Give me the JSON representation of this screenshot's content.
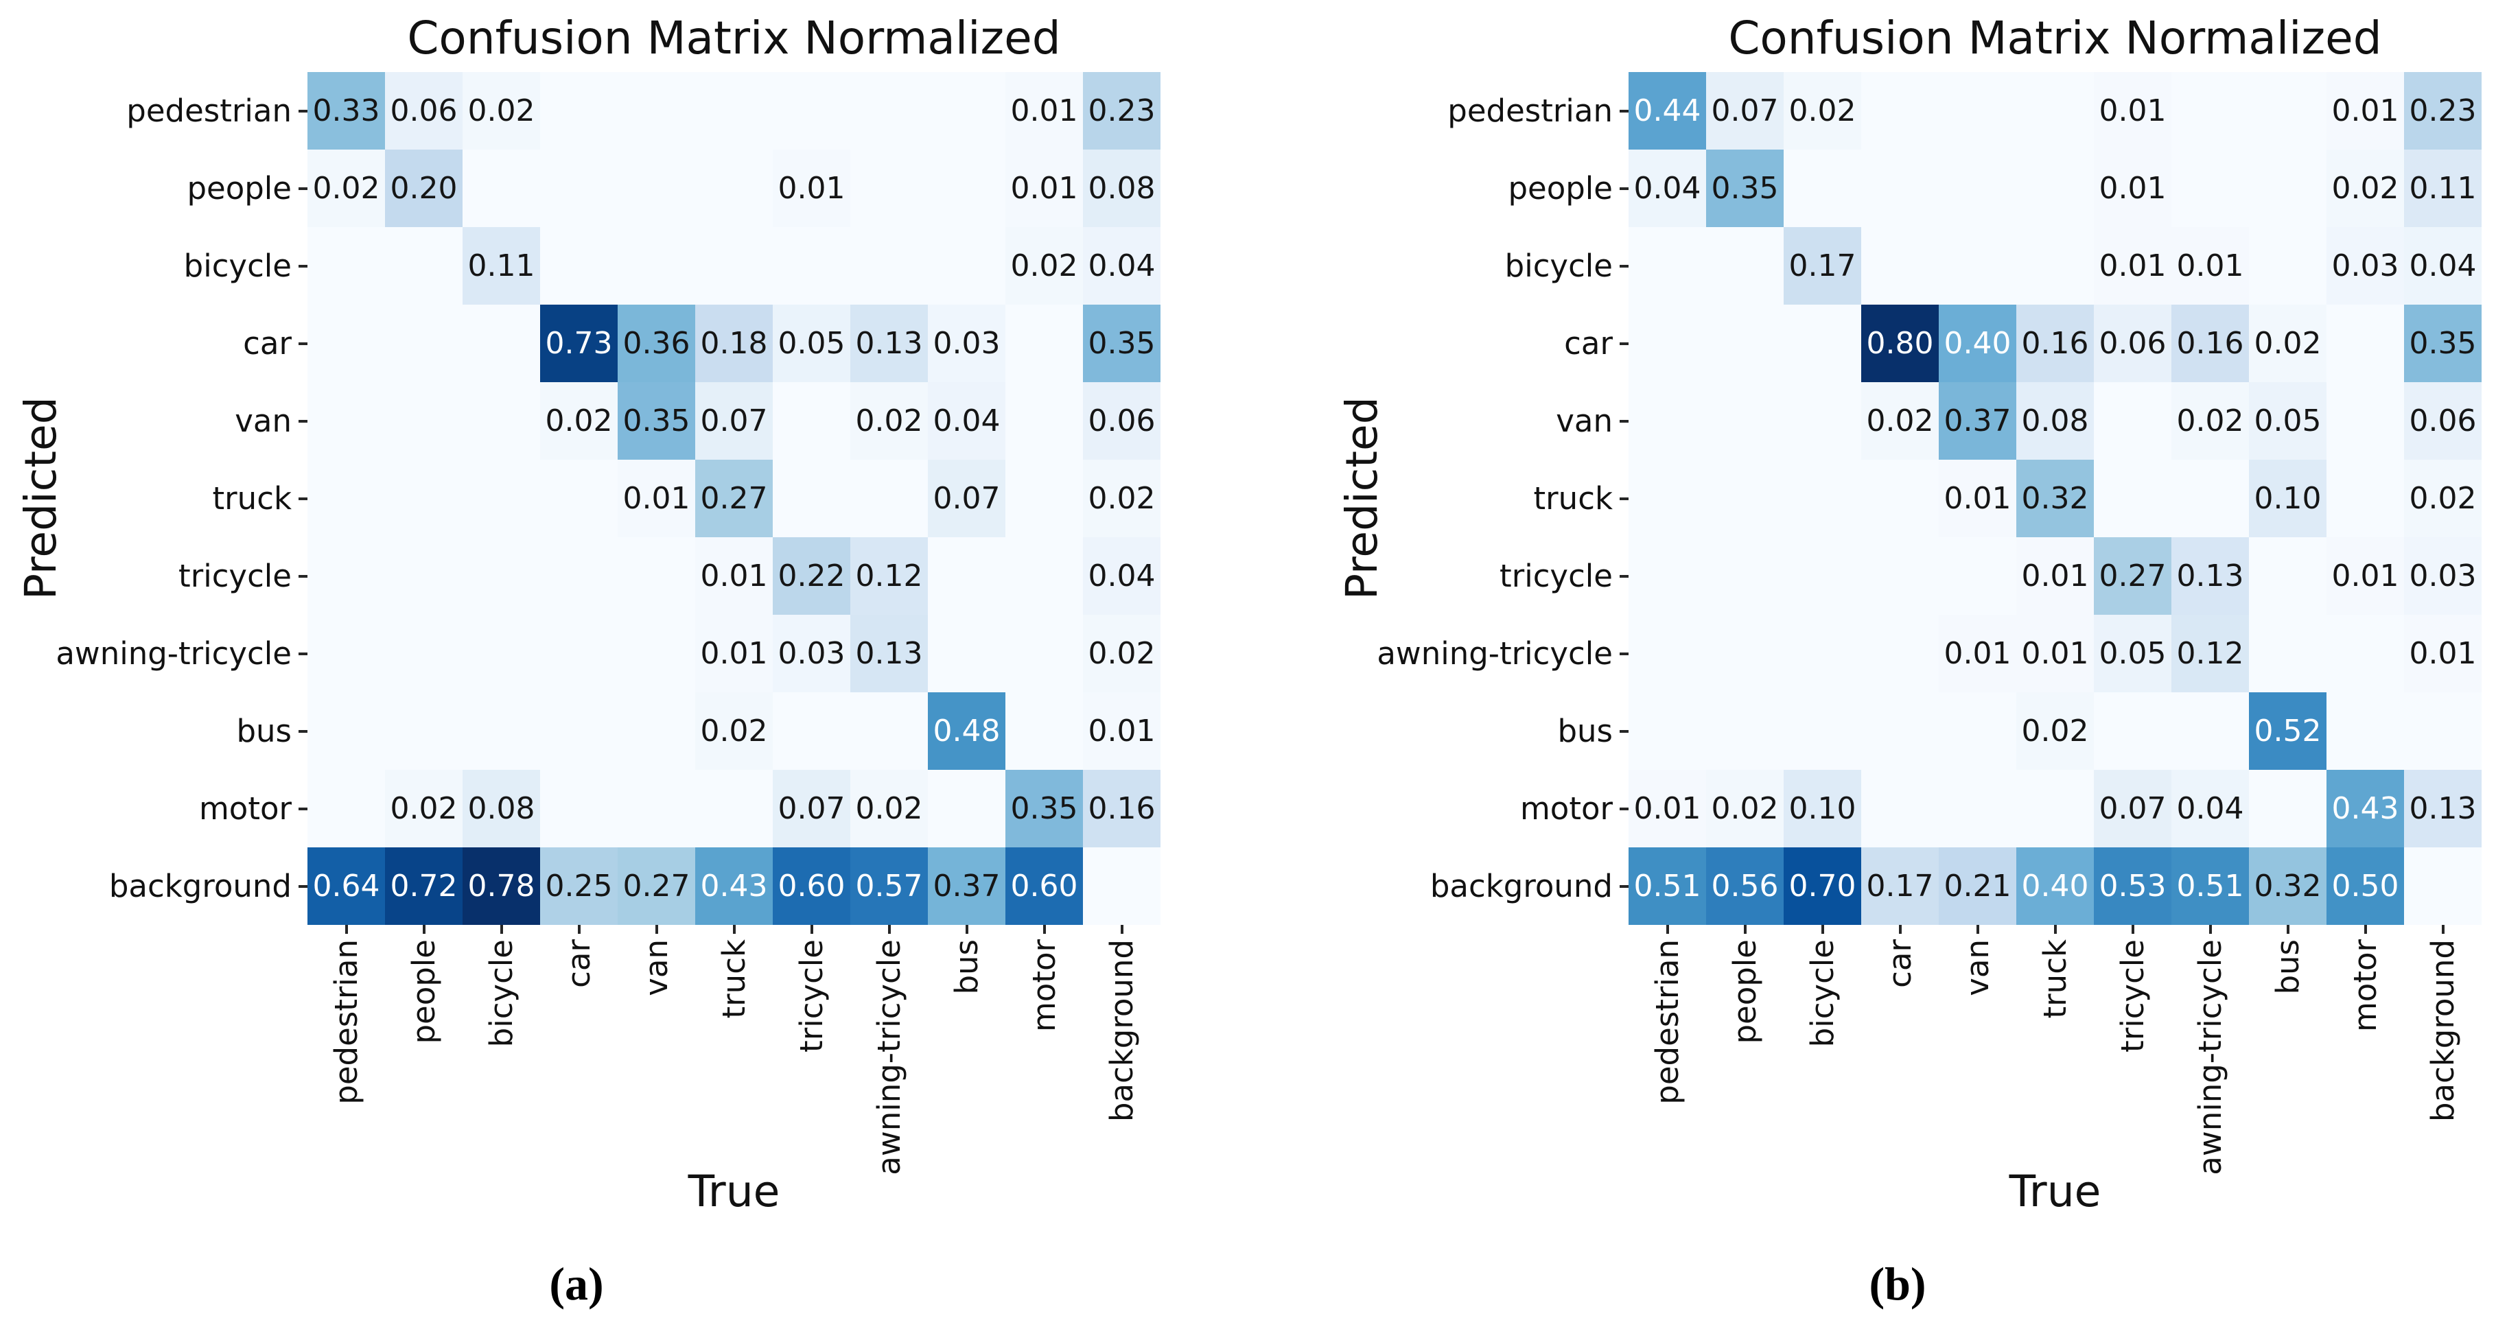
{
  "colors": {
    "background": "#ffffff",
    "colormap_low": "#f7fbff",
    "colormap_high": "#08306b",
    "annotation_dark": "#151515",
    "annotation_light": "#ffffff",
    "tick_color": "#262626"
  },
  "chart_data": [
    {
      "type": "heatmap",
      "panel_label": "(a)",
      "title": "Confusion Matrix Normalized",
      "xlabel": "True",
      "ylabel": "Predicted",
      "colormap": "Blues",
      "grid": false,
      "legend": "none",
      "vmin": 0,
      "vmax": 0.78,
      "x_categories": [
        "pedestrian",
        "people",
        "bicycle",
        "car",
        "van",
        "truck",
        "tricycle",
        "awning-tricycle",
        "bus",
        "motor",
        "background"
      ],
      "y_categories": [
        "pedestrian",
        "people",
        "bicycle",
        "car",
        "van",
        "truck",
        "tricycle",
        "awning-tricycle",
        "bus",
        "motor",
        "background"
      ],
      "values": [
        [
          0.33,
          0.06,
          0.02,
          0,
          0,
          0,
          0,
          0,
          0,
          0.01,
          0.23
        ],
        [
          0.02,
          0.2,
          0,
          0,
          0,
          0,
          0.01,
          0,
          0,
          0.01,
          0.08
        ],
        [
          0,
          0,
          0.11,
          0,
          0,
          0,
          0,
          0,
          0,
          0.02,
          0.04
        ],
        [
          0,
          0,
          0,
          0.73,
          0.36,
          0.18,
          0.05,
          0.13,
          0.03,
          0,
          0.35
        ],
        [
          0,
          0,
          0,
          0.02,
          0.35,
          0.07,
          0,
          0.02,
          0.04,
          0,
          0.06
        ],
        [
          0,
          0,
          0,
          0,
          0.01,
          0.27,
          0,
          0,
          0.07,
          0,
          0.02
        ],
        [
          0,
          0,
          0,
          0,
          0,
          0.01,
          0.22,
          0.12,
          0,
          0,
          0.04
        ],
        [
          0,
          0,
          0,
          0,
          0,
          0.01,
          0.03,
          0.13,
          0,
          0,
          0.02
        ],
        [
          0,
          0,
          0,
          0,
          0,
          0.02,
          0,
          0,
          0.48,
          0,
          0.01
        ],
        [
          0,
          0.02,
          0.08,
          0,
          0,
          0,
          0.07,
          0.02,
          0,
          0.35,
          0.16
        ],
        [
          0.64,
          0.72,
          0.78,
          0.25,
          0.27,
          0.43,
          0.6,
          0.57,
          0.37,
          0.6,
          0
        ]
      ]
    },
    {
      "type": "heatmap",
      "panel_label": "(b)",
      "title": "Confusion Matrix Normalized",
      "xlabel": "True",
      "ylabel": "Predicted",
      "colormap": "Blues",
      "grid": false,
      "legend": "none",
      "vmin": 0,
      "vmax": 0.8,
      "x_categories": [
        "pedestrian",
        "people",
        "bicycle",
        "car",
        "van",
        "truck",
        "tricycle",
        "awning-tricycle",
        "bus",
        "motor",
        "background"
      ],
      "y_categories": [
        "pedestrian",
        "people",
        "bicycle",
        "car",
        "van",
        "truck",
        "tricycle",
        "awning-tricycle",
        "bus",
        "motor",
        "background"
      ],
      "values": [
        [
          0.44,
          0.07,
          0.02,
          0,
          0,
          0,
          0.01,
          0,
          0,
          0.01,
          0.23
        ],
        [
          0.04,
          0.35,
          0,
          0,
          0,
          0,
          0.01,
          0,
          0,
          0.02,
          0.11
        ],
        [
          0,
          0,
          0.17,
          0,
          0,
          0,
          0.01,
          0.01,
          0,
          0.03,
          0.04
        ],
        [
          0,
          0,
          0,
          0.8,
          0.4,
          0.16,
          0.06,
          0.16,
          0.02,
          0,
          0.35
        ],
        [
          0,
          0,
          0,
          0.02,
          0.37,
          0.08,
          0,
          0.02,
          0.05,
          0,
          0.06
        ],
        [
          0,
          0,
          0,
          0,
          0.01,
          0.32,
          0,
          0,
          0.1,
          0,
          0.02
        ],
        [
          0,
          0,
          0,
          0,
          0,
          0.01,
          0.27,
          0.13,
          0,
          0.01,
          0.03
        ],
        [
          0,
          0,
          0,
          0,
          0.01,
          0.01,
          0.05,
          0.12,
          0,
          0,
          0.01
        ],
        [
          0,
          0,
          0,
          0,
          0,
          0.02,
          0,
          0,
          0.52,
          0,
          0
        ],
        [
          0.01,
          0.02,
          0.1,
          0,
          0,
          0,
          0.07,
          0.04,
          0,
          0.43,
          0.13
        ],
        [
          0.51,
          0.56,
          0.7,
          0.17,
          0.21,
          0.4,
          0.53,
          0.51,
          0.32,
          0.5,
          0
        ]
      ]
    }
  ]
}
